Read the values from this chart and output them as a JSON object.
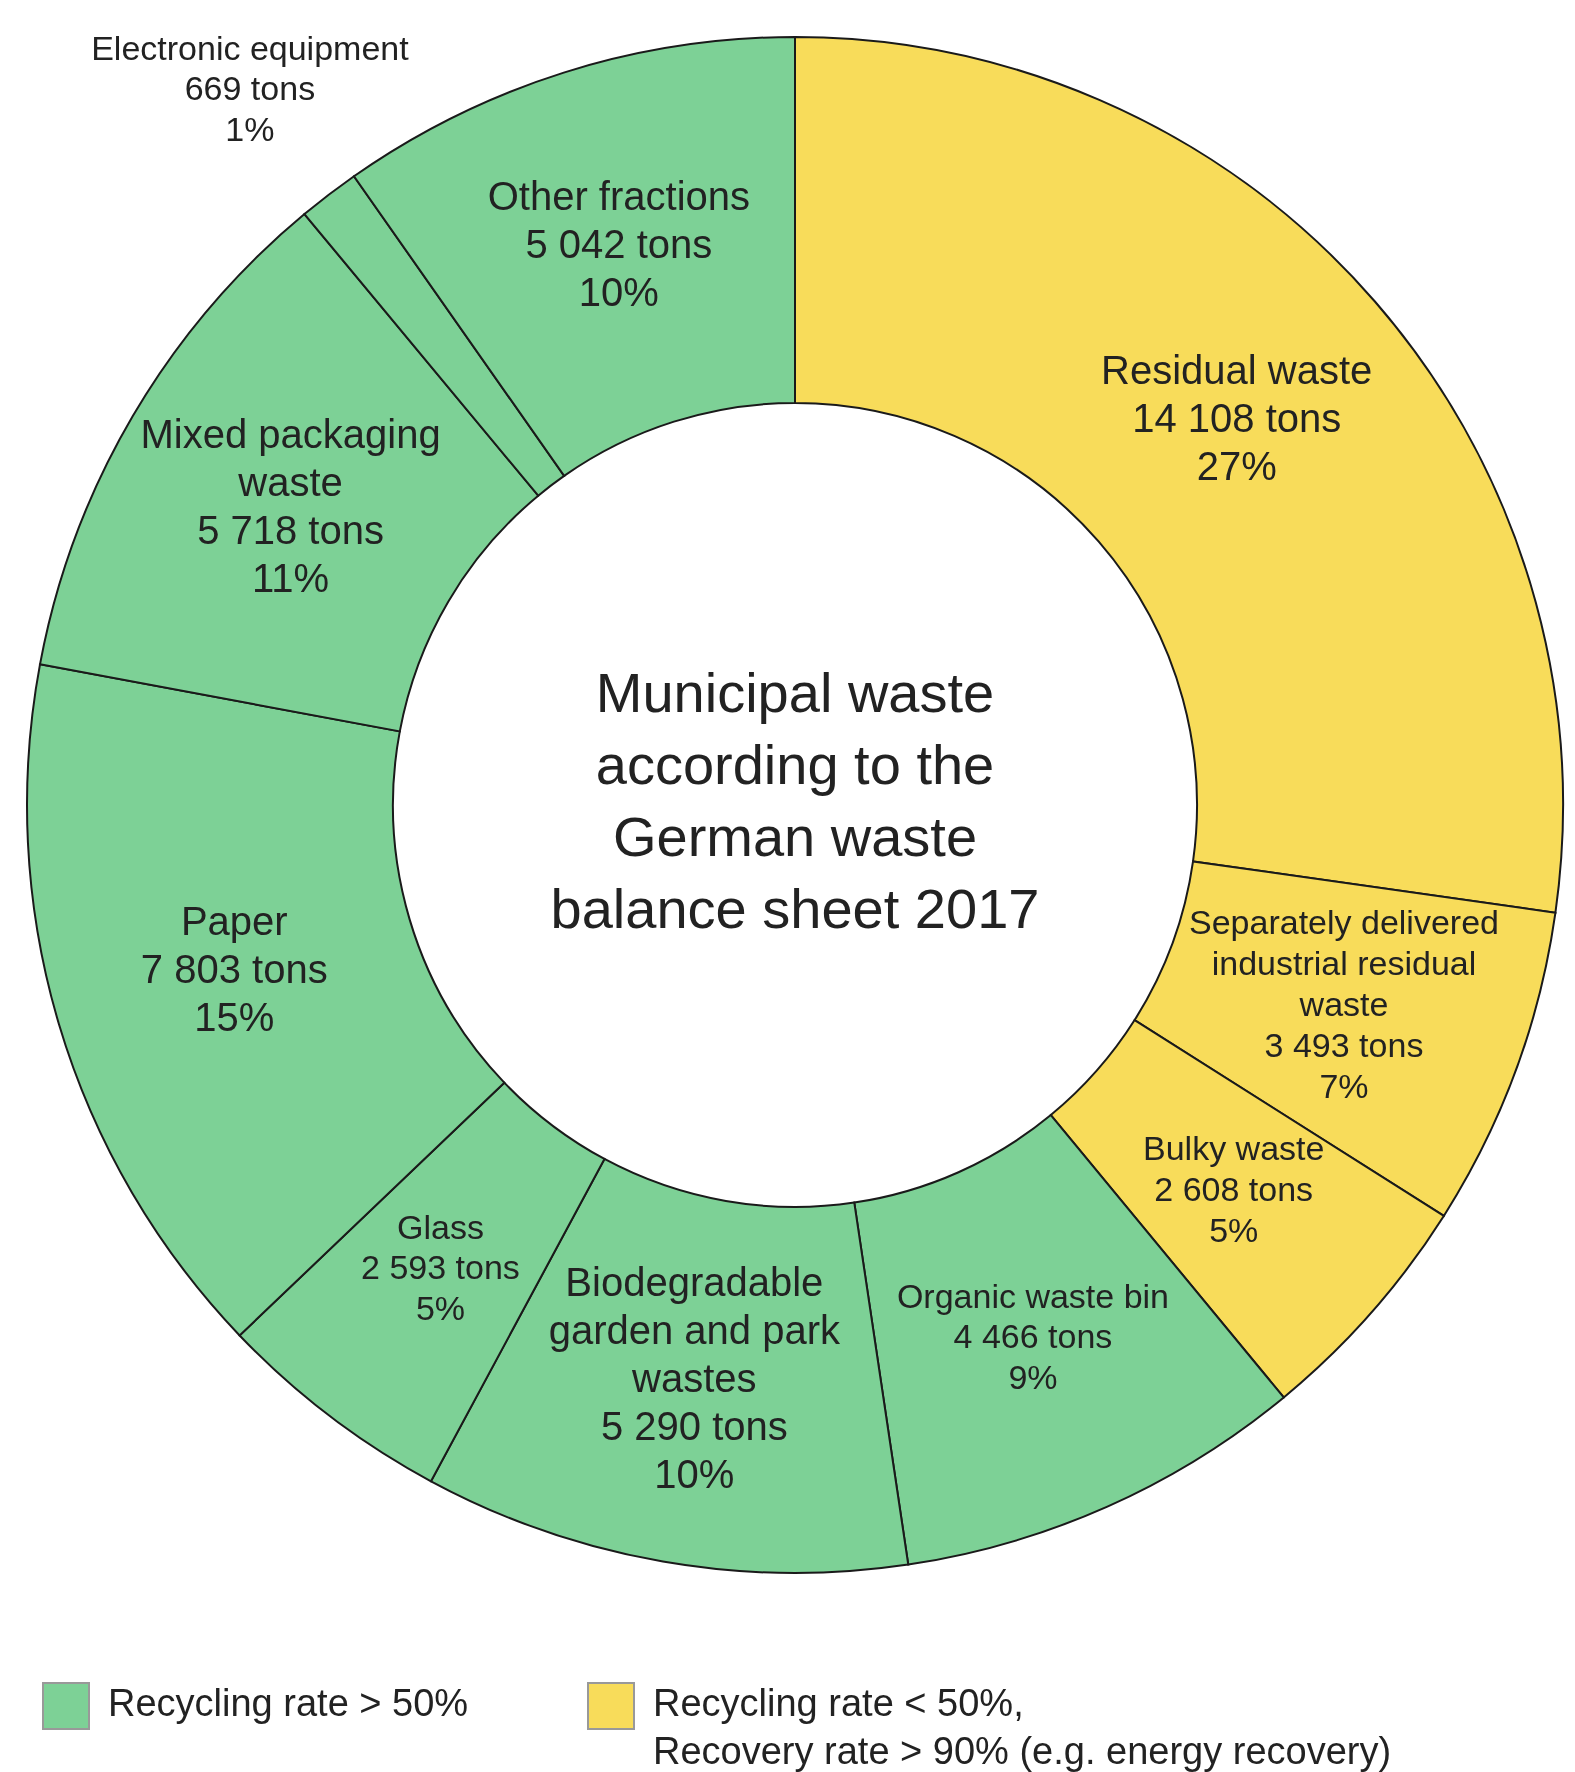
{
  "chart_data": {
    "type": "donut",
    "title": "Municipal waste according to the German waste balance sheet 2017",
    "categories": [
      "Residual waste",
      "Separately delivered industrial residual waste",
      "Bulky waste",
      "Organic waste bin",
      "Biodegradable garden and park wastes",
      "Glass",
      "Paper",
      "Mixed packaging waste",
      "Electronic equipment",
      "Other fractions"
    ],
    "values": [
      14108,
      3493,
      2608,
      4466,
      5290,
      2593,
      7803,
      5718,
      669,
      5042
    ],
    "colors": [
      "#f8dc5a",
      "#f8dc5a",
      "#f8dc5a",
      "#7dd196",
      "#7dd196",
      "#7dd196",
      "#7dd196",
      "#7dd196",
      "#7dd196",
      "#7dd196"
    ],
    "value_labels": [
      "14 108 tons\n27%",
      "3 493 tons\n7%",
      "2 608 tons\n5%",
      "4 466 tons\n9%",
      "5 290 tons\n10%",
      "2 593 tons\n5%",
      "7 803 tons\n15%",
      "5 718 tons\n11%",
      "669 tons\n1%",
      "5 042 tons\n10%"
    ],
    "annotations": [
      "Recycling rate > 50%",
      "Recycling rate < 50%, Recovery rate > 90% (e.g. energy recovery)"
    ]
  }
}
